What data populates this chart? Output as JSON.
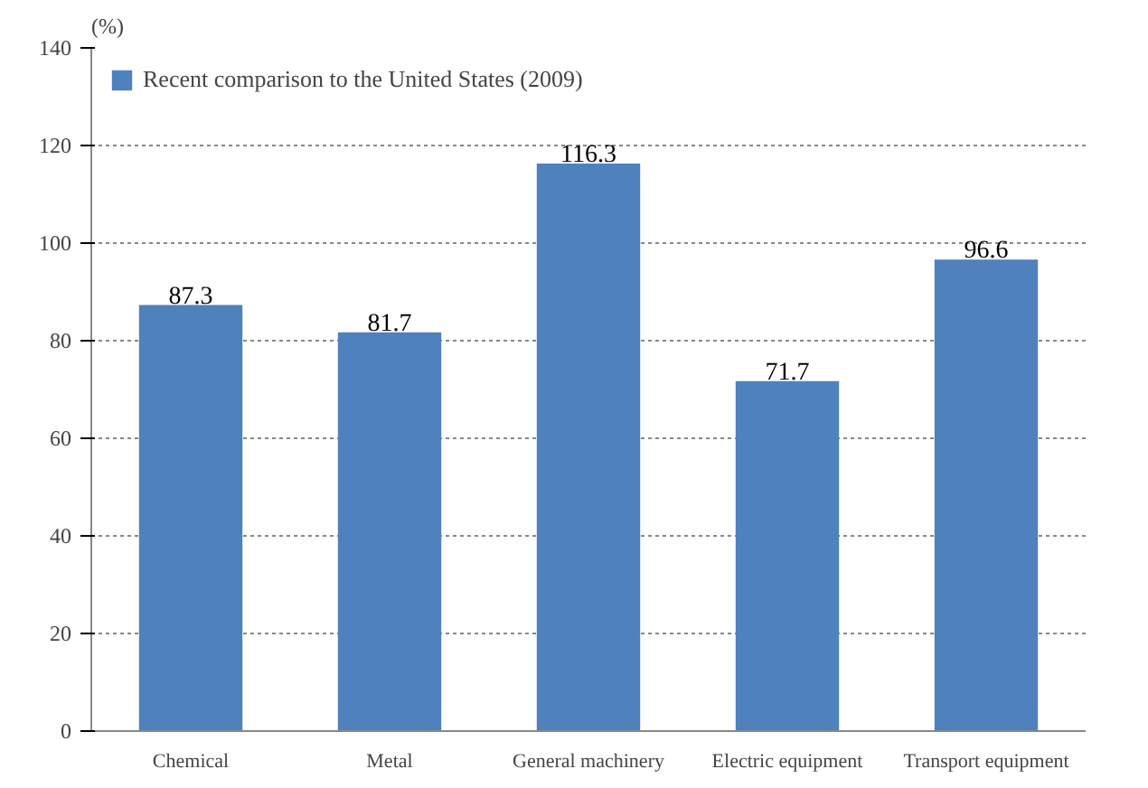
{
  "chart_data": {
    "type": "bar",
    "ylabel": "(%)",
    "categories": [
      "Chemical",
      "Metal",
      "General machinery",
      "Electric equipment",
      "Transport equipment"
    ],
    "series": [
      {
        "name": "Recent comparison to the United States (2009)",
        "color": "#4f81bd",
        "values": [
          87.3,
          81.7,
          116.3,
          71.7,
          96.6
        ]
      }
    ],
    "ylim": [
      0,
      140
    ],
    "yticks": [
      0,
      20,
      40,
      60,
      80,
      100,
      120,
      140
    ],
    "grid": "y",
    "legend": "top left",
    "data_labels": true
  }
}
